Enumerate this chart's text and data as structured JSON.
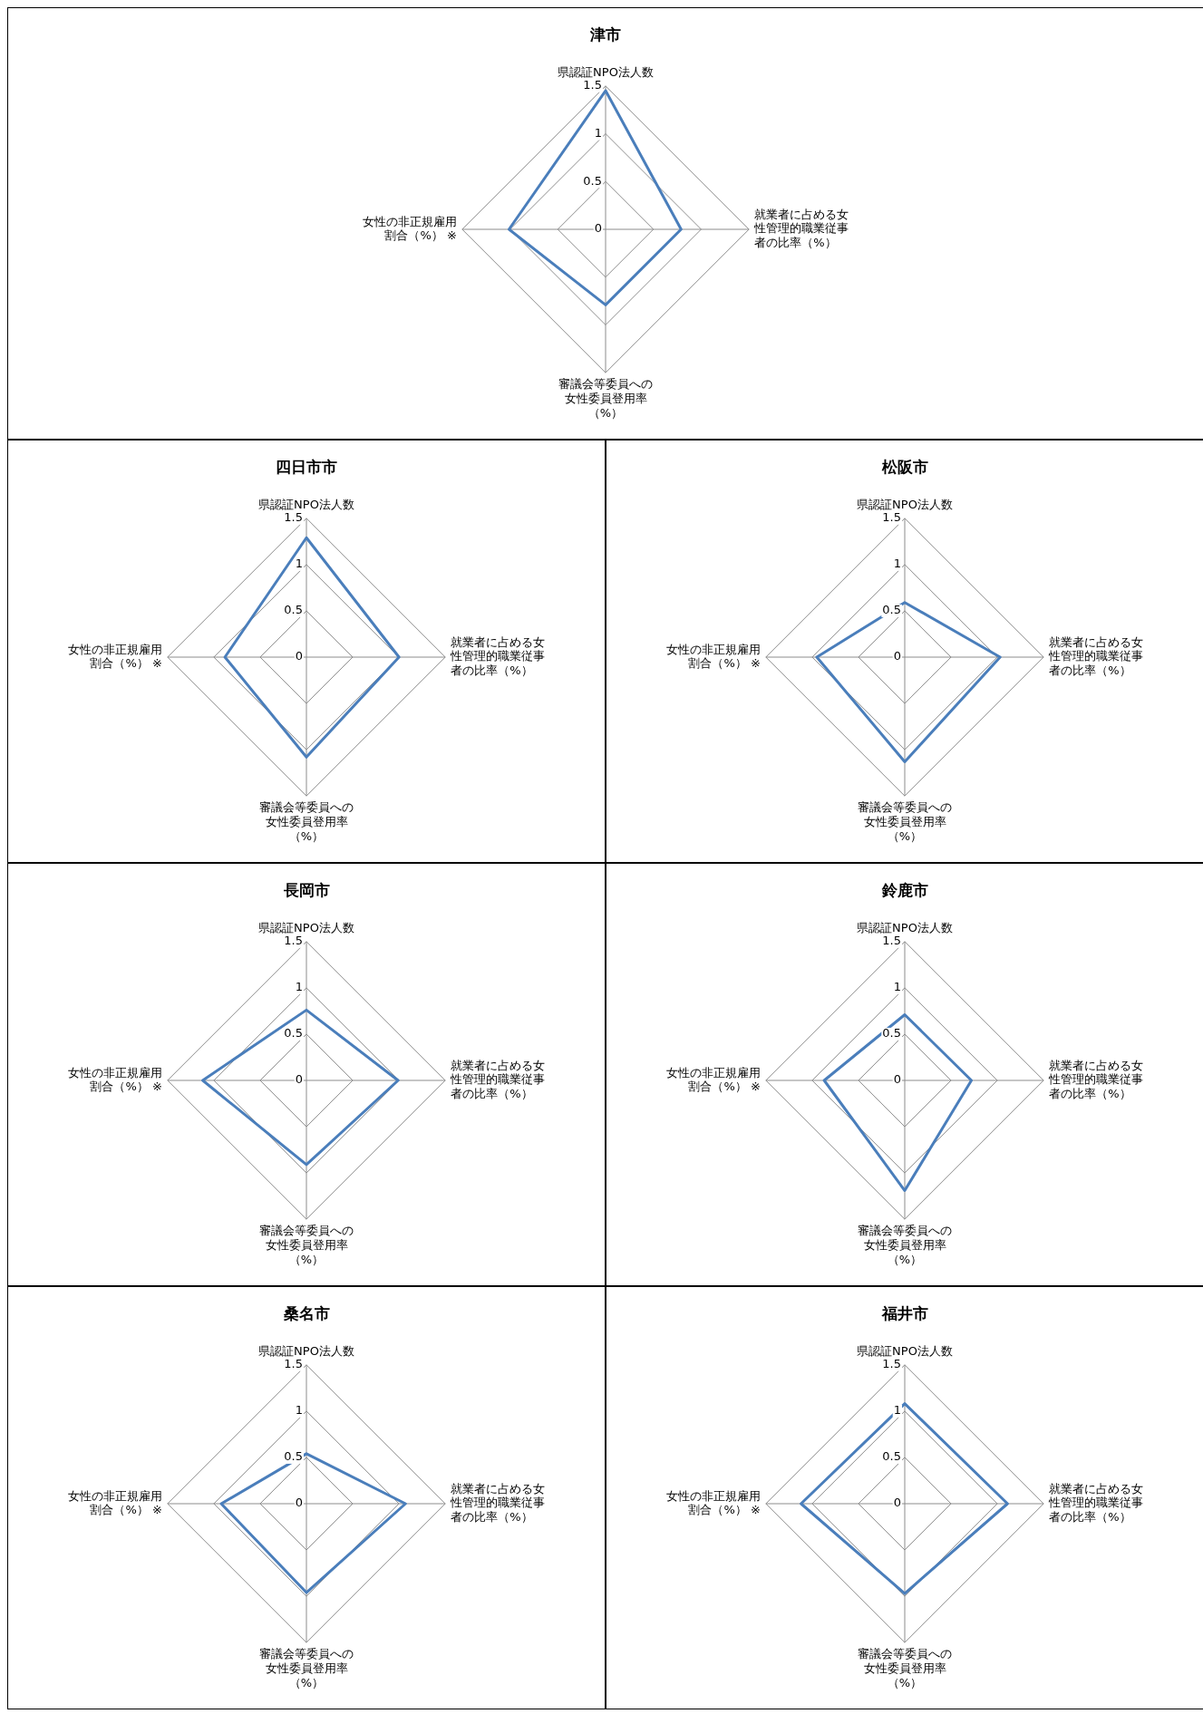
{
  "chart_data": [
    {
      "type": "radar",
      "title": "津市",
      "categories": [
        "県認証NPO法人数",
        "就業者に占める女性管理的職業従事者の比率（%）",
        "審議会等委員への女性委員登用率（%）",
        "女性の非正規雇用割合（%） ※"
      ],
      "series": [
        {
          "color": "#4a7ebb",
          "values": [
            1.45,
            0.79,
            0.79,
            1.01
          ]
        }
      ],
      "ylim": [
        0,
        1.5
      ],
      "yticks": [
        0,
        0.5,
        1,
        1.5
      ],
      "grid": true,
      "marker": "none",
      "legend": false
    },
    {
      "type": "radar",
      "title": "四日市市",
      "categories": [
        "県認証NPO法人数",
        "就業者に占める女性管理的職業従事者の比率（%）",
        "審議会等委員への女性委員登用率（%）",
        "女性の非正規雇用割合（%） ※"
      ],
      "series": [
        {
          "color": "#4a7ebb",
          "values": [
            1.29,
            1.0,
            1.08,
            0.88
          ]
        }
      ],
      "ylim": [
        0,
        1.5
      ],
      "yticks": [
        0,
        0.5,
        1,
        1.5
      ],
      "grid": true,
      "marker": "none",
      "legend": false
    },
    {
      "type": "radar",
      "title": "松阪市",
      "categories": [
        "県認証NPO法人数",
        "就業者に占める女性管理的職業従事者の比率（%）",
        "審議会等委員への女性委員登用率（%）",
        "女性の非正規雇用割合（%） ※"
      ],
      "series": [
        {
          "color": "#4a7ebb",
          "values": [
            0.59,
            1.03,
            1.13,
            0.95
          ]
        }
      ],
      "ylim": [
        0,
        1.5
      ],
      "yticks": [
        0,
        0.5,
        1,
        1.5
      ],
      "grid": true,
      "marker": "none",
      "legend": false
    },
    {
      "type": "radar",
      "title": "長岡市",
      "categories": [
        "県認証NPO法人数",
        "就業者に占める女性管理的職業従事者の比率（%）",
        "審議会等委員への女性委員登用率（%）",
        "女性の非正規雇用割合（%） ※"
      ],
      "series": [
        {
          "color": "#4a7ebb",
          "values": [
            0.76,
            0.99,
            0.91,
            1.12
          ]
        }
      ],
      "ylim": [
        0,
        1.5
      ],
      "yticks": [
        0,
        0.5,
        1,
        1.5
      ],
      "grid": true,
      "marker": "none",
      "legend": false
    },
    {
      "type": "radar",
      "title": "鈴鹿市",
      "categories": [
        "県認証NPO法人数",
        "就業者に占める女性管理的職業従事者の比率（%）",
        "審議会等委員への女性委員登用率（%）",
        "女性の非正規雇用割合（%） ※"
      ],
      "series": [
        {
          "color": "#4a7ebb",
          "values": [
            0.71,
            0.72,
            1.19,
            0.87
          ]
        }
      ],
      "ylim": [
        0,
        1.5
      ],
      "yticks": [
        0,
        0.5,
        1,
        1.5
      ],
      "grid": true,
      "marker": "none",
      "legend": false
    },
    {
      "type": "radar",
      "title": "桑名市",
      "categories": [
        "県認証NPO法人数",
        "就業者に占める女性管理的職業従事者の比率（%）",
        "審議会等委員への女性委員登用率（%）",
        "女性の非正規雇用割合（%） ※"
      ],
      "series": [
        {
          "color": "#4a7ebb",
          "values": [
            0.54,
            1.07,
            0.96,
            0.92
          ]
        }
      ],
      "ylim": [
        0,
        1.5
      ],
      "yticks": [
        0,
        0.5,
        1,
        1.5
      ],
      "grid": true,
      "marker": "none",
      "legend": false
    },
    {
      "type": "radar",
      "title": "福井市",
      "categories": [
        "県認証NPO法人数",
        "就業者に占める女性管理的職業従事者の比率（%）",
        "審議会等委員への女性委員登用率（%）",
        "女性の非正規雇用割合（%） ※"
      ],
      "series": [
        {
          "color": "#4a7ebb",
          "values": [
            1.08,
            1.11,
            0.97,
            1.12
          ]
        }
      ],
      "ylim": [
        0,
        1.5
      ],
      "yticks": [
        0,
        0.5,
        1,
        1.5
      ],
      "grid": true,
      "marker": "none",
      "legend": false
    }
  ]
}
